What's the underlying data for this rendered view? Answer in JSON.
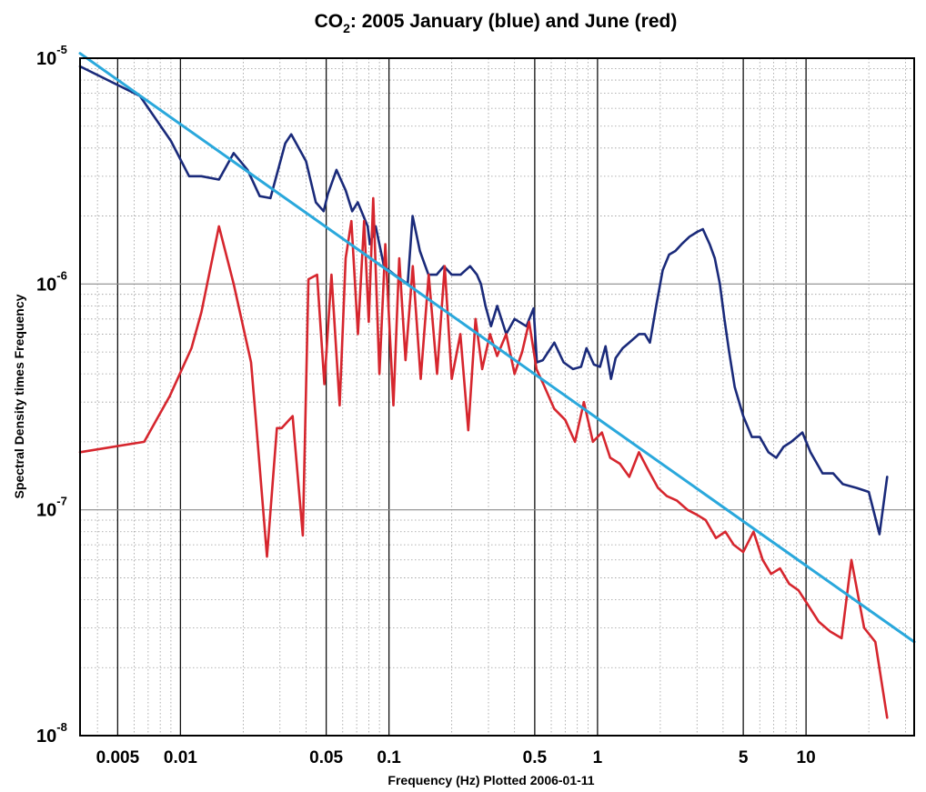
{
  "chart_data": {
    "type": "line",
    "title": {
      "co": "CO",
      "sub": "2",
      "rest": ": 2005 January (blue) and June (red)"
    },
    "xlabel": "Frequency (Hz)   Plotted 2006-01-11",
    "ylabel": "Spectral Density times Frequency",
    "x_scale": "log",
    "y_scale": "log",
    "xlim": [
      0.0033,
      33
    ],
    "ylim": [
      1e-08,
      1e-05
    ],
    "grid": true,
    "x_ticks": [
      {
        "value": 0.005,
        "label": "0.005"
      },
      {
        "value": 0.01,
        "label": "0.01"
      },
      {
        "value": 0.05,
        "label": "0.05"
      },
      {
        "value": 0.1,
        "label": "0.1"
      },
      {
        "value": 0.5,
        "label": "0.5"
      },
      {
        "value": 1,
        "label": "1"
      },
      {
        "value": 5,
        "label": "5"
      },
      {
        "value": 10,
        "label": "10"
      }
    ],
    "y_ticks": [
      {
        "value": 1e-05,
        "base": "10",
        "exp": "-5"
      },
      {
        "value": 1e-06,
        "base": "10",
        "exp": "-6"
      },
      {
        "value": 1e-07,
        "base": "10",
        "exp": "-7"
      },
      {
        "value": 1e-08,
        "base": "10",
        "exp": "-8"
      }
    ],
    "series": [
      {
        "color": "#1a2a7a",
        "x": [
          0.0033,
          0.0064,
          0.009,
          0.011,
          0.0126,
          0.0153,
          0.018,
          0.021,
          0.024,
          0.027,
          0.0318,
          0.034,
          0.04,
          0.0446,
          0.0486,
          0.0509,
          0.056,
          0.062,
          0.0666,
          0.0708,
          0.079,
          0.081,
          0.0863,
          0.0946,
          0.1063,
          0.123,
          0.1298,
          0.1406,
          0.1546,
          0.1692,
          0.1834,
          0.2,
          0.2205,
          0.2449,
          0.264,
          0.276,
          0.2903,
          0.3084,
          0.3304,
          0.365,
          0.4,
          0.4561,
          0.4937,
          0.512,
          0.5471,
          0.6207,
          0.6879,
          0.7637,
          0.834,
          0.8858,
          0.9609,
          1.028,
          1.0924,
          1.161,
          1.222,
          1.3206,
          1.42,
          1.582,
          1.6855,
          1.7838,
          1.9127,
          2.054,
          2.204,
          2.362,
          2.53,
          2.76,
          3.0,
          3.2,
          3.45,
          3.65,
          3.86,
          4.06,
          4.28,
          4.55,
          5.0,
          5.5,
          6.0,
          6.6,
          7.2,
          7.8,
          8.5,
          9.6,
          10.5,
          12.0,
          13.5,
          15.0,
          17.5,
          20.0,
          22.5,
          24.5
        ],
        "y": [
          9.2e-06,
          6.8e-06,
          4.3e-06,
          3e-06,
          3e-06,
          2.9e-06,
          3.8e-06,
          3.2e-06,
          2.45e-06,
          2.4e-06,
          4.2e-06,
          4.6e-06,
          3.5e-06,
          2.3e-06,
          2.1e-06,
          2.5e-06,
          3.2e-06,
          2.6e-06,
          2.1e-06,
          2.3e-06,
          1.8e-06,
          1.5e-06,
          1.8e-06,
          1.2e-06,
          1.1e-06,
          1e-06,
          2e-06,
          1.4e-06,
          1.1e-06,
          1.1e-06,
          1.2e-06,
          1.1e-06,
          1.1e-06,
          1.2e-06,
          1.1e-06,
          1e-06,
          8e-07,
          6.5e-07,
          8e-07,
          6e-07,
          7e-07,
          6.5e-07,
          7.8e-07,
          4.5e-07,
          4.6e-07,
          5.5e-07,
          4.5e-07,
          4.2e-07,
          4.3e-07,
          5.2e-07,
          4.4e-07,
          4.3e-07,
          5.3e-07,
          3.8e-07,
          4.7e-07,
          5.2e-07,
          5.5e-07,
          6e-07,
          6e-07,
          5.5e-07,
          8e-07,
          1.15e-06,
          1.35e-06,
          1.4e-06,
          1.5e-06,
          1.62e-06,
          1.7e-06,
          1.75e-06,
          1.5e-06,
          1.3e-06,
          1e-06,
          7e-07,
          5e-07,
          3.5e-07,
          2.6e-07,
          2.1e-07,
          2.1e-07,
          1.8e-07,
          1.7e-07,
          1.9e-07,
          2e-07,
          2.2e-07,
          1.8e-07,
          1.45e-07,
          1.45e-07,
          1.3e-07,
          1.25e-07,
          1.2e-07,
          7.8e-08,
          1.4e-07
        ]
      },
      {
        "color": "#d6262e",
        "x": [
          0.0033,
          0.0067,
          0.0089,
          0.0113,
          0.0126,
          0.0153,
          0.018,
          0.0218,
          0.023,
          0.026,
          0.029,
          0.0306,
          0.0345,
          0.0386,
          0.0411,
          0.0452,
          0.049,
          0.053,
          0.058,
          0.062,
          0.066,
          0.071,
          0.076,
          0.08,
          0.084,
          0.09,
          0.096,
          0.105,
          0.112,
          0.12,
          0.13,
          0.142,
          0.155,
          0.17,
          0.185,
          0.2,
          0.22,
          0.24,
          0.26,
          0.28,
          0.305,
          0.33,
          0.365,
          0.4,
          0.435,
          0.47,
          0.51,
          0.55,
          0.62,
          0.7,
          0.78,
          0.86,
          0.95,
          1.05,
          1.15,
          1.28,
          1.42,
          1.58,
          1.75,
          1.95,
          2.15,
          2.4,
          2.7,
          3.0,
          3.3,
          3.7,
          4.1,
          4.5,
          5.0,
          5.6,
          6.2,
          6.8,
          7.5,
          8.3,
          9.2,
          10.2,
          11.5,
          13.0,
          14.8,
          16.5,
          19.0,
          21.5,
          24.5
        ],
        "y": [
          1.8e-07,
          2e-07,
          3.2e-07,
          5.2e-07,
          7.5e-07,
          1.8e-06,
          1e-06,
          4.5e-07,
          2.5e-07,
          6.2e-08,
          2.3e-07,
          2.3e-07,
          2.6e-07,
          7.7e-08,
          1.05e-06,
          1.1e-06,
          3.6e-07,
          1.1e-06,
          2.9e-07,
          1.3e-06,
          1.9e-06,
          6e-07,
          1.9e-06,
          6.8e-07,
          2.4e-06,
          4e-07,
          1.5e-06,
          2.9e-07,
          1.3e-06,
          4.6e-07,
          1.2e-06,
          3.8e-07,
          1.1e-06,
          4e-07,
          1.2e-06,
          3.8e-07,
          6e-07,
          2.25e-07,
          7e-07,
          4.2e-07,
          6e-07,
          4.8e-07,
          6e-07,
          4e-07,
          5e-07,
          6.8e-07,
          4.2e-07,
          3.6e-07,
          2.8e-07,
          2.5e-07,
          2e-07,
          3e-07,
          2e-07,
          2.2e-07,
          1.7e-07,
          1.6e-07,
          1.4e-07,
          1.8e-07,
          1.5e-07,
          1.25e-07,
          1.15e-07,
          1.1e-07,
          1e-07,
          9.5e-08,
          9e-08,
          7.5e-08,
          8e-08,
          7e-08,
          6.5e-08,
          8e-08,
          6e-08,
          5.2e-08,
          5.5e-08,
          4.7e-08,
          4.4e-08,
          3.8e-08,
          3.2e-08,
          2.9e-08,
          2.7e-08,
          6e-08,
          3e-08,
          2.6e-08,
          1.2e-08
        ]
      },
      {
        "color": "#2aa8dc",
        "x": [
          0.0033,
          33
        ],
        "y": [
          1.05e-05,
          2.6e-08
        ]
      }
    ]
  }
}
